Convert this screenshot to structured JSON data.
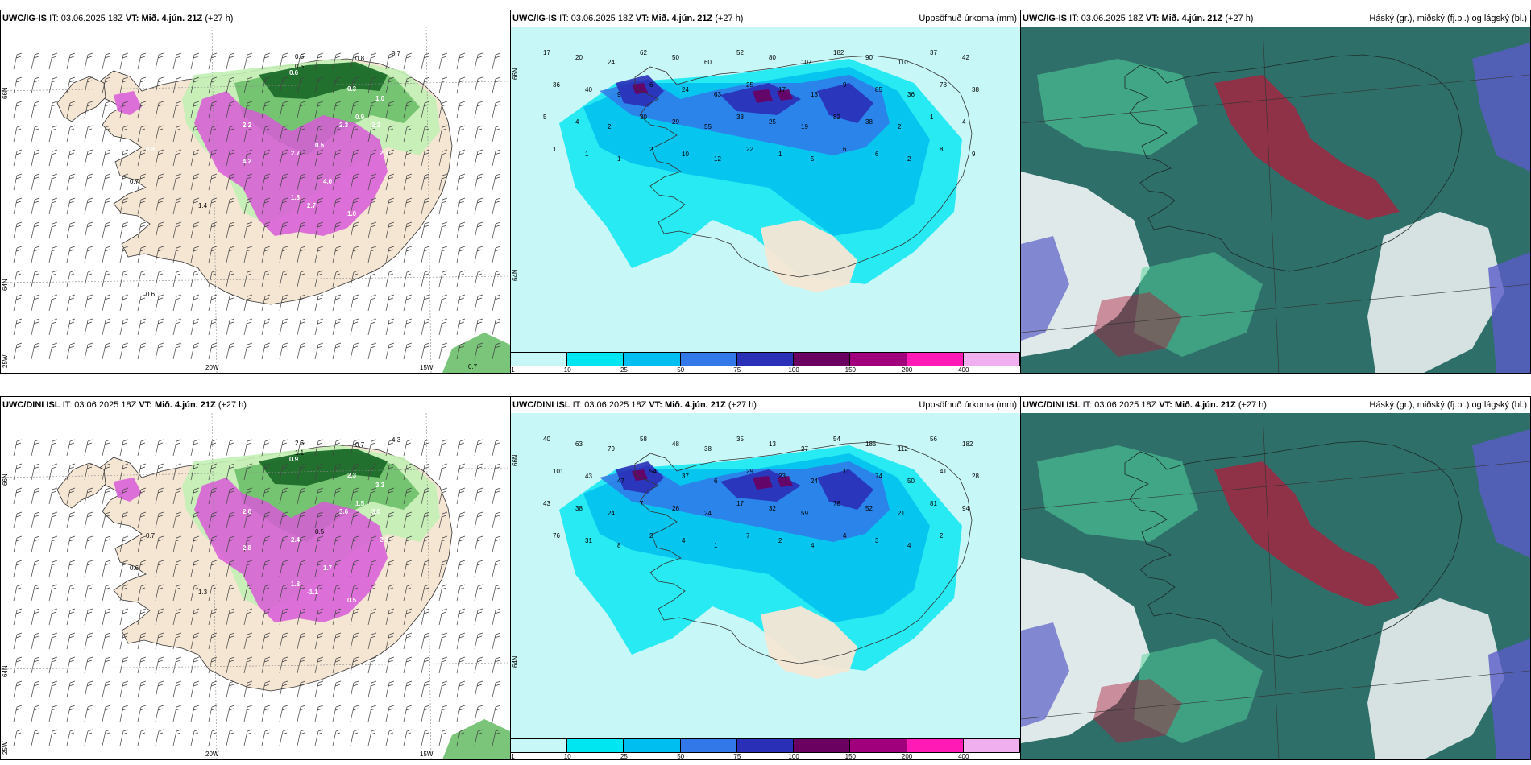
{
  "rows": [
    {
      "id": "top",
      "panels": [
        {
          "type": "wind",
          "model": "UWC/IG-IS",
          "it_label": "IT:",
          "it_value": "03.06.2025 18Z",
          "vt_label": "VT:",
          "vt_value": "Mið. 4.jún. 21Z",
          "lead": "(+27 h)",
          "right_title": "",
          "axis": {
            "lat_top": "66N",
            "lat_bottom": "64N",
            "lon_left": "25W",
            "lon_mid": "20W",
            "lon_right": "15W"
          },
          "values": [
            "0.5",
            "0.5",
            "0.6",
            "0.8",
            "0.7",
            "0.3",
            "1.0",
            "0.9",
            "2.3",
            "2.2",
            "2.7",
            "4.0",
            "2.3",
            "2.7",
            "4.2",
            "1.8",
            "2.7",
            "1.0",
            "0.5",
            "0.8",
            "1.4",
            "0.7",
            "0.6",
            "0.7"
          ]
        },
        {
          "type": "precip",
          "model": "UWC/IG-IS",
          "it_label": "IT:",
          "it_value": "03.06.2025 18Z",
          "vt_label": "VT:",
          "vt_value": "Mið. 4.jún. 21Z",
          "lead": "(+27 h)",
          "right_title": "Uppsöfnuð úrkoma (mm)",
          "axis": {
            "lat_top": "66N",
            "lat_bottom": "64N"
          },
          "values": [
            "17",
            "20",
            "24",
            "62",
            "50",
            "60",
            "52",
            "80",
            "107",
            "182",
            "90",
            "110",
            "37",
            "42",
            "36",
            "40",
            "9",
            "6",
            "24",
            "63",
            "25",
            "17",
            "13",
            "9",
            "85",
            "36",
            "78",
            "38",
            "5",
            "4",
            "2",
            "30",
            "29",
            "55",
            "33",
            "25",
            "19",
            "82",
            "38",
            "2",
            "1",
            "4",
            "1",
            "1",
            "1",
            "2",
            "10",
            "12",
            "22",
            "1",
            "5",
            "6",
            "6",
            "2",
            "8",
            "9"
          ]
        },
        {
          "type": "cloud",
          "model": "UWC/IG-IS",
          "it_label": "IT:",
          "it_value": "03.06.2025 18Z",
          "vt_label": "VT:",
          "vt_value": "Mið. 4.jún. 21Z",
          "lead": "(+27 h)",
          "right_title": "Háský (gr.), miðský (fj.bl.) og lágský (bl.)",
          "axis": {},
          "values": []
        }
      ]
    },
    {
      "id": "bottom",
      "panels": [
        {
          "type": "wind",
          "model": "UWC/DINI ISL",
          "it_label": "IT:",
          "it_value": "03.06.2025 18Z",
          "vt_label": "VT:",
          "vt_value": "Mið. 4.jún. 21Z",
          "lead": "(+27 h)",
          "right_title": "",
          "axis": {
            "lat_top": "66N",
            "lat_bottom": "64N",
            "lon_left": "25W",
            "lon_mid": "20W",
            "lon_right": "15W"
          },
          "values": [
            "2.6",
            "1.1",
            "0.9",
            "0.7",
            "4.3",
            "2.3",
            "3.3",
            "1.5",
            "3.6",
            "2.0",
            "2.4",
            "1.7",
            "3.0",
            "2.3",
            "2.8",
            "1.8",
            "-1.1",
            "0.5",
            "0.5",
            "0.7",
            "1.3",
            "0.6"
          ]
        },
        {
          "type": "precip",
          "model": "UWC/DINI ISL",
          "it_label": "IT:",
          "it_value": "03.06.2025 18Z",
          "vt_label": "VT:",
          "vt_value": "Mið. 4.jún. 21Z",
          "lead": "(+27 h)",
          "right_title": "Uppsöfnuð úrkoma (mm)",
          "axis": {
            "lat_top": "66N",
            "lat_bottom": "64N"
          },
          "values": [
            "40",
            "63",
            "79",
            "58",
            "48",
            "38",
            "35",
            "13",
            "27",
            "54",
            "185",
            "112",
            "56",
            "182",
            "101",
            "43",
            "47",
            "54",
            "37",
            "6",
            "29",
            "23",
            "24",
            "11",
            "74",
            "50",
            "41",
            "28",
            "43",
            "38",
            "24",
            "7",
            "26",
            "24",
            "17",
            "32",
            "59",
            "78",
            "52",
            "21",
            "81",
            "94",
            "76",
            "31",
            "8",
            "2",
            "4",
            "1",
            "7",
            "2",
            "4",
            "4",
            "3",
            "4",
            "2"
          ]
        },
        {
          "type": "cloud",
          "model": "UWC/DINI ISL",
          "it_label": "IT:",
          "it_value": "03.06.2025 18Z",
          "vt_label": "VT:",
          "vt_value": "Mið. 4.jún. 21Z",
          "lead": "(+27 h)",
          "right_title": "Háský (gr.), miðský (fj.bl.) og lágský (bl.)",
          "axis": {},
          "values": []
        }
      ]
    }
  ],
  "colorbar": {
    "labels": [
      "1",
      "10",
      "25",
      "50",
      "75",
      "100",
      "150",
      "200",
      "400"
    ],
    "colors": [
      "#c8f7f7",
      "#00e6f0",
      "#00bff0",
      "#3378e8",
      "#2a2fb8",
      "#6a0060",
      "#a0007c",
      "#ff1ab6",
      "#f0b0f0"
    ]
  },
  "colors": {
    "land": "#f5e6d3",
    "sea_precip": "#c8f7f7",
    "coast": "#333333",
    "wind_green_light": "#c2f0b4",
    "wind_green": "#6bbf6a",
    "wind_green_dark": "#1c6b2a",
    "magenta": "#d85ad8",
    "cloud_teal": "#2f6f6a",
    "cloud_green": "#4fd39a",
    "cloud_red": "#b01c3c",
    "cloud_blue": "#5a5cc8"
  }
}
